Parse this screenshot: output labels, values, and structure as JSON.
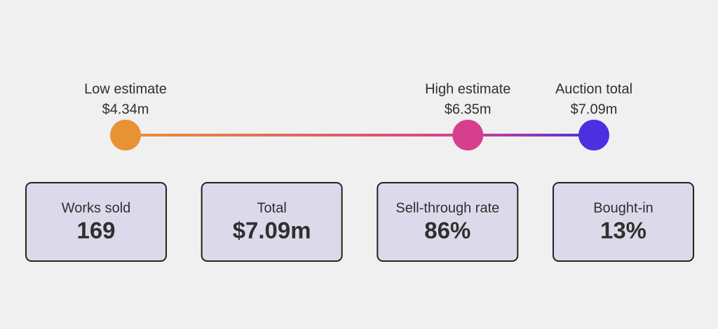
{
  "chart_data": {
    "type": "dot-range",
    "categories": [
      "Low estimate",
      "High estimate",
      "Auction total"
    ],
    "values": [
      4.34,
      6.35,
      7.09
    ],
    "value_labels": [
      "$4.34m",
      "$6.35m",
      "$7.09m"
    ],
    "colors": [
      "#e89234",
      "#d63f8c",
      "#4b2fe0"
    ]
  },
  "stats": [
    {
      "label": "Works sold",
      "value": "169"
    },
    {
      "label": "Total",
      "value": "$7.09m"
    },
    {
      "label": "Sell-through rate",
      "value": "86%"
    },
    {
      "label": "Bought-in",
      "value": "13%"
    }
  ]
}
